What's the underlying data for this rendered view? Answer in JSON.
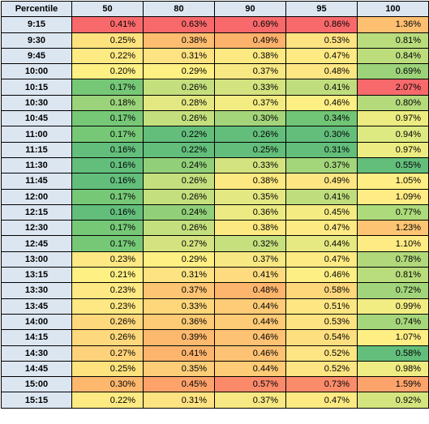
{
  "header": [
    "Percentile",
    "50",
    "80",
    "90",
    "95",
    "100"
  ],
  "rows": [
    {
      "time": "9:15",
      "cells": [
        {
          "v": "0.41%",
          "c": "#f8696b"
        },
        {
          "v": "0.63%",
          "c": "#f8696b"
        },
        {
          "v": "0.69%",
          "c": "#f8696b"
        },
        {
          "v": "0.86%",
          "c": "#f8696b"
        },
        {
          "v": "1.36%",
          "c": "#fdbf70"
        }
      ]
    },
    {
      "time": "9:30",
      "cells": [
        {
          "v": "0.25%",
          "c": "#fee27e"
        },
        {
          "v": "0.38%",
          "c": "#fdbd70"
        },
        {
          "v": "0.49%",
          "c": "#fdb26c"
        },
        {
          "v": "0.53%",
          "c": "#fee382"
        },
        {
          "v": "0.81%",
          "c": "#b9dc7c"
        }
      ]
    },
    {
      "time": "9:45",
      "cells": [
        {
          "v": "0.22%",
          "c": "#feea83"
        },
        {
          "v": "0.31%",
          "c": "#fee382"
        },
        {
          "v": "0.38%",
          "c": "#fde981"
        },
        {
          "v": "0.47%",
          "c": "#feea83"
        },
        {
          "v": "0.84%",
          "c": "#bddd7d"
        }
      ]
    },
    {
      "time": "10:00",
      "cells": [
        {
          "v": "0.20%",
          "c": "#fff084"
        },
        {
          "v": "0.29%",
          "c": "#fff084"
        },
        {
          "v": "0.37%",
          "c": "#f7e883"
        },
        {
          "v": "0.48%",
          "c": "#fee783"
        },
        {
          "v": "0.69%",
          "c": "#9cd37a"
        }
      ]
    },
    {
      "time": "10:15",
      "cells": [
        {
          "v": "0.17%",
          "c": "#76c877"
        },
        {
          "v": "0.26%",
          "c": "#c4df7e"
        },
        {
          "v": "0.33%",
          "c": "#d3e37f"
        },
        {
          "v": "0.41%",
          "c": "#c0dd7d"
        },
        {
          "v": "2.07%",
          "c": "#f8696b"
        }
      ]
    },
    {
      "time": "10:30",
      "cells": [
        {
          "v": "0.18%",
          "c": "#9ad37a"
        },
        {
          "v": "0.28%",
          "c": "#e3e882"
        },
        {
          "v": "0.37%",
          "c": "#f3ec83"
        },
        {
          "v": "0.46%",
          "c": "#fdef84"
        },
        {
          "v": "0.80%",
          "c": "#b5da7c"
        }
      ]
    },
    {
      "time": "10:45",
      "cells": [
        {
          "v": "0.17%",
          "c": "#76c877"
        },
        {
          "v": "0.26%",
          "c": "#c4df7e"
        },
        {
          "v": "0.30%",
          "c": "#a4d57b"
        },
        {
          "v": "0.34%",
          "c": "#71c576"
        },
        {
          "v": "0.97%",
          "c": "#ecec82"
        }
      ]
    },
    {
      "time": "11:00",
      "cells": [
        {
          "v": "0.17%",
          "c": "#76c877"
        },
        {
          "v": "0.22%",
          "c": "#63be7b"
        },
        {
          "v": "0.26%",
          "c": "#63be7b"
        },
        {
          "v": "0.30%",
          "c": "#63be7b"
        },
        {
          "v": "0.94%",
          "c": "#ddea82"
        }
      ]
    },
    {
      "time": "11:15",
      "cells": [
        {
          "v": "0.16%",
          "c": "#63be7b"
        },
        {
          "v": "0.22%",
          "c": "#63be7b"
        },
        {
          "v": "0.25%",
          "c": "#63be7b"
        },
        {
          "v": "0.31%",
          "c": "#63be7b"
        },
        {
          "v": "0.97%",
          "c": "#ecec82"
        }
      ]
    },
    {
      "time": "11:30",
      "cells": [
        {
          "v": "0.16%",
          "c": "#63be7b"
        },
        {
          "v": "0.24%",
          "c": "#91d079"
        },
        {
          "v": "0.33%",
          "c": "#d3e37f"
        },
        {
          "v": "0.37%",
          "c": "#a3d57b"
        },
        {
          "v": "0.55%",
          "c": "#63be7b"
        }
      ]
    },
    {
      "time": "11:45",
      "cells": [
        {
          "v": "0.16%",
          "c": "#63be7b"
        },
        {
          "v": "0.26%",
          "c": "#c4df7e"
        },
        {
          "v": "0.38%",
          "c": "#fde981"
        },
        {
          "v": "0.49%",
          "c": "#fee783"
        },
        {
          "v": "1.05%",
          "c": "#ffee84"
        }
      ]
    },
    {
      "time": "12:00",
      "cells": [
        {
          "v": "0.17%",
          "c": "#76c877"
        },
        {
          "v": "0.26%",
          "c": "#c4df7e"
        },
        {
          "v": "0.35%",
          "c": "#e3e882"
        },
        {
          "v": "0.41%",
          "c": "#c0dd7d"
        },
        {
          "v": "1.09%",
          "c": "#ffec84"
        }
      ]
    },
    {
      "time": "12:15",
      "cells": [
        {
          "v": "0.16%",
          "c": "#63be7b"
        },
        {
          "v": "0.24%",
          "c": "#91d079"
        },
        {
          "v": "0.36%",
          "c": "#eceb83"
        },
        {
          "v": "0.45%",
          "c": "#f4ec83"
        },
        {
          "v": "0.77%",
          "c": "#addb7b"
        }
      ]
    },
    {
      "time": "12:30",
      "cells": [
        {
          "v": "0.17%",
          "c": "#76c877"
        },
        {
          "v": "0.26%",
          "c": "#c4df7e"
        },
        {
          "v": "0.38%",
          "c": "#fde981"
        },
        {
          "v": "0.47%",
          "c": "#feea83"
        },
        {
          "v": "1.23%",
          "c": "#fdc573"
        }
      ]
    },
    {
      "time": "12:45",
      "cells": [
        {
          "v": "0.17%",
          "c": "#76c877"
        },
        {
          "v": "0.27%",
          "c": "#d4e37f"
        },
        {
          "v": "0.32%",
          "c": "#c6e07e"
        },
        {
          "v": "0.44%",
          "c": "#e6e982"
        },
        {
          "v": "1.10%",
          "c": "#ffeb84"
        }
      ]
    },
    {
      "time": "13:00",
      "cells": [
        {
          "v": "0.23%",
          "c": "#fee883"
        },
        {
          "v": "0.29%",
          "c": "#fff084"
        },
        {
          "v": "0.37%",
          "c": "#f7e883"
        },
        {
          "v": "0.47%",
          "c": "#feea83"
        },
        {
          "v": "0.78%",
          "c": "#b1d97c"
        }
      ]
    },
    {
      "time": "13:15",
      "cells": [
        {
          "v": "0.21%",
          "c": "#fff084"
        },
        {
          "v": "0.31%",
          "c": "#fee382"
        },
        {
          "v": "0.41%",
          "c": "#fedb7e"
        },
        {
          "v": "0.46%",
          "c": "#fdef84"
        },
        {
          "v": "0.81%",
          "c": "#b9dc7c"
        }
      ]
    },
    {
      "time": "13:30",
      "cells": [
        {
          "v": "0.23%",
          "c": "#fee883"
        },
        {
          "v": "0.37%",
          "c": "#fdc473"
        },
        {
          "v": "0.48%",
          "c": "#fdb56d"
        },
        {
          "v": "0.58%",
          "c": "#fed77b"
        },
        {
          "v": "0.72%",
          "c": "#a2d57b"
        }
      ]
    },
    {
      "time": "13:45",
      "cells": [
        {
          "v": "0.23%",
          "c": "#fee883"
        },
        {
          "v": "0.33%",
          "c": "#fed77b"
        },
        {
          "v": "0.44%",
          "c": "#fecb76"
        },
        {
          "v": "0.51%",
          "c": "#fee783"
        },
        {
          "v": "0.99%",
          "c": "#f1ed83"
        }
      ]
    },
    {
      "time": "14:00",
      "cells": [
        {
          "v": "0.26%",
          "c": "#fed87c"
        },
        {
          "v": "0.36%",
          "c": "#fdca75"
        },
        {
          "v": "0.44%",
          "c": "#fecb76"
        },
        {
          "v": "0.53%",
          "c": "#fee382"
        },
        {
          "v": "0.74%",
          "c": "#a6d67b"
        }
      ]
    },
    {
      "time": "14:15",
      "cells": [
        {
          "v": "0.26%",
          "c": "#fed87c"
        },
        {
          "v": "0.39%",
          "c": "#fdb96e"
        },
        {
          "v": "0.46%",
          "c": "#fdc273"
        },
        {
          "v": "0.54%",
          "c": "#fedf7f"
        },
        {
          "v": "1.07%",
          "c": "#ffee84"
        }
      ]
    },
    {
      "time": "14:30",
      "cells": [
        {
          "v": "0.27%",
          "c": "#fed27a"
        },
        {
          "v": "0.41%",
          "c": "#fdb56d"
        },
        {
          "v": "0.46%",
          "c": "#fdc273"
        },
        {
          "v": "0.52%",
          "c": "#fee583"
        },
        {
          "v": "0.58%",
          "c": "#63be7b"
        }
      ]
    },
    {
      "time": "14:45",
      "cells": [
        {
          "v": "0.25%",
          "c": "#fee27e"
        },
        {
          "v": "0.35%",
          "c": "#fdcd78"
        },
        {
          "v": "0.44%",
          "c": "#fecb76"
        },
        {
          "v": "0.52%",
          "c": "#fee583"
        },
        {
          "v": "0.98%",
          "c": "#eeec83"
        }
      ]
    },
    {
      "time": "15:00",
      "cells": [
        {
          "v": "0.30%",
          "c": "#fdb86e"
        },
        {
          "v": "0.45%",
          "c": "#fca26a"
        },
        {
          "v": "0.57%",
          "c": "#fb8a6b"
        },
        {
          "v": "0.73%",
          "c": "#fa8c6b"
        },
        {
          "v": "1.59%",
          "c": "#fca36b"
        }
      ]
    },
    {
      "time": "15:15",
      "cells": [
        {
          "v": "0.22%",
          "c": "#feea83"
        },
        {
          "v": "0.31%",
          "c": "#fee382"
        },
        {
          "v": "0.37%",
          "c": "#f7e883"
        },
        {
          "v": "0.47%",
          "c": "#feea83"
        },
        {
          "v": "0.92%",
          "c": "#d4e580"
        }
      ]
    }
  ]
}
